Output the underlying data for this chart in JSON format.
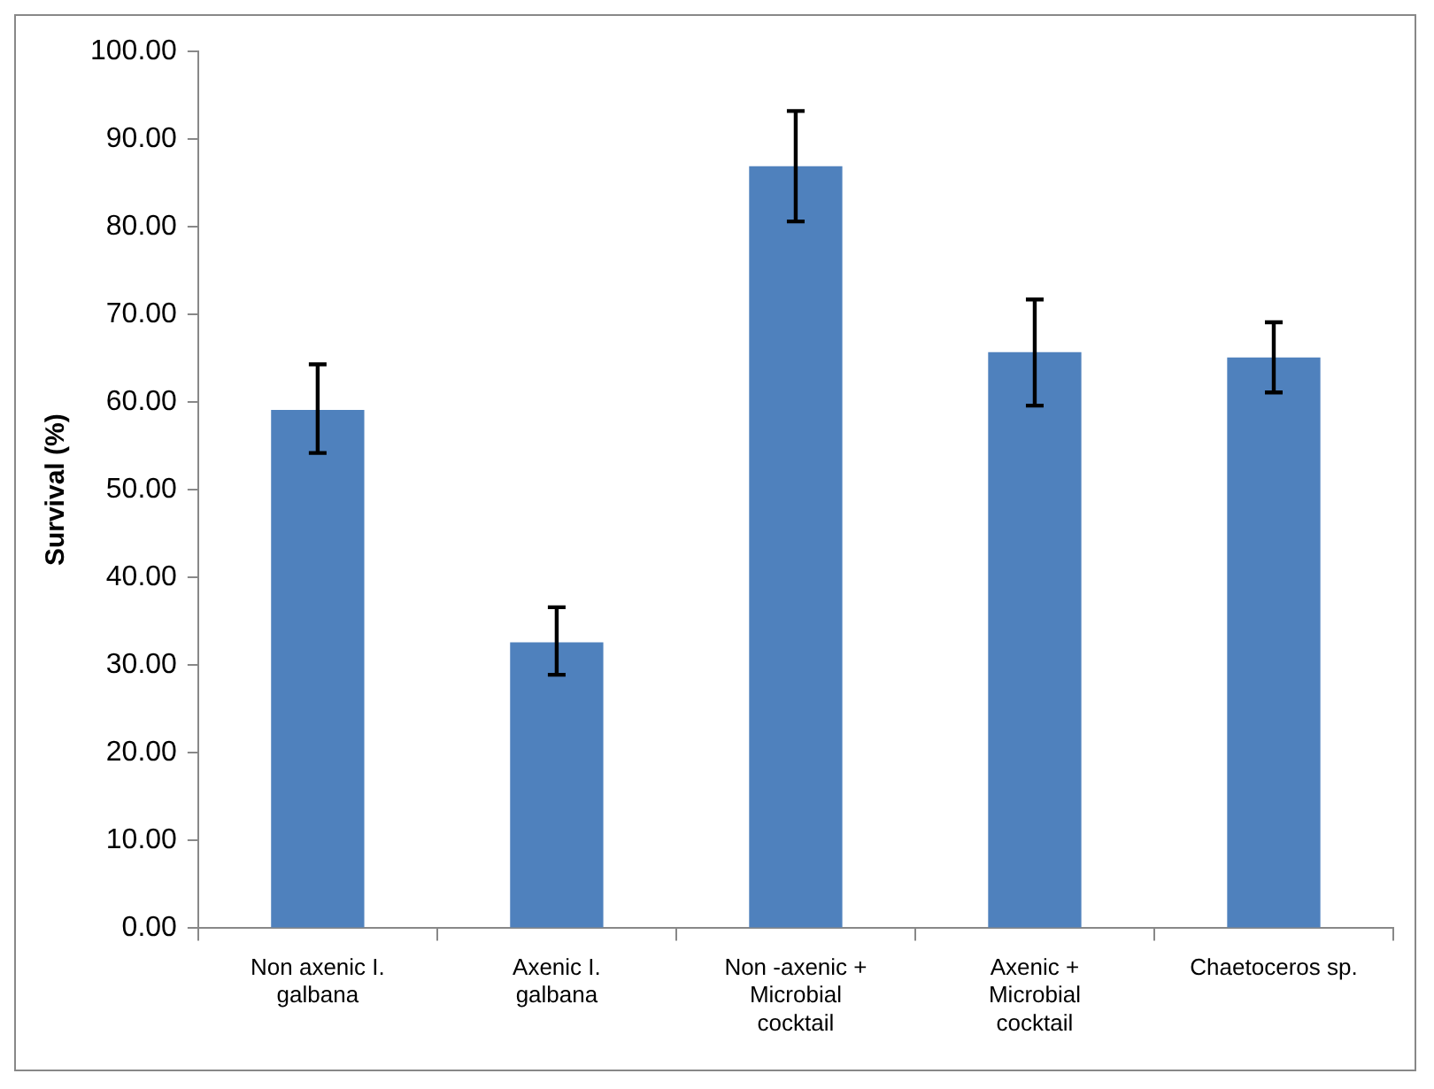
{
  "chart_data": {
    "type": "bar",
    "ylabel": "Survival (%)",
    "categories": [
      "Non axenic I. galbana",
      "Axenic I. galbana",
      "Non -axenic + Microbial cocktail",
      "Axenic + Microbial cocktail",
      "Chaetoceros sp."
    ],
    "values": [
      59.1,
      32.6,
      86.9,
      65.7,
      65.1
    ],
    "errors": [
      [
        54.2,
        64.3
      ],
      [
        28.9,
        36.6
      ],
      [
        80.6,
        93.2
      ],
      [
        59.6,
        71.7
      ],
      [
        61.1,
        69.1
      ]
    ],
    "color": "#4f81bd",
    "ylim": [
      0,
      100
    ],
    "yticks": [
      {
        "value": 0,
        "label": "0.00"
      },
      {
        "value": 10,
        "label": "10.00"
      },
      {
        "value": 20,
        "label": "20.00"
      },
      {
        "value": 30,
        "label": "30.00"
      },
      {
        "value": 40,
        "label": "40.00"
      },
      {
        "value": 50,
        "label": "50.00"
      },
      {
        "value": 60,
        "label": "60.00"
      },
      {
        "value": 70,
        "label": "70.00"
      },
      {
        "value": 80,
        "label": "80.00"
      },
      {
        "value": 90,
        "label": "90.00"
      },
      {
        "value": 100,
        "label": "100.00"
      }
    ],
    "grid": false,
    "legend": false
  }
}
